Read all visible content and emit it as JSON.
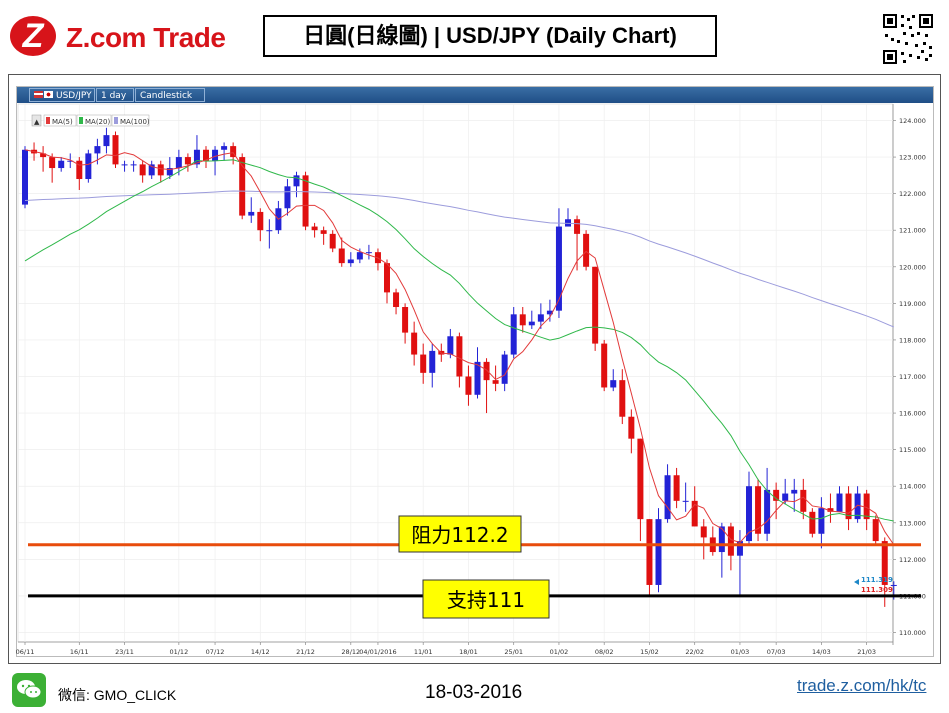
{
  "header": {
    "logo_text": "Z.com Trade",
    "title": "日圓(日線圖) | USD/JPY  (Daily Chart)"
  },
  "toolbar": {
    "symbol": "USD/JPY",
    "interval": "1 day",
    "style": "Candlestick"
  },
  "legend": {
    "ma5": "MA(5)",
    "ma20": "MA(20)",
    "ma100": "MA(100)"
  },
  "annotations": {
    "resistance": "阻力112.2",
    "support": "支持111",
    "last_bid": "111.319",
    "last_ask": "111.309"
  },
  "footer": {
    "wechat_label": "微信: GMO_CLICK",
    "date": "18-03-2016",
    "url": "trade.z.com/hk/tc"
  },
  "colors": {
    "up": "#2323d6",
    "down": "#e01010",
    "ma5": "#e23a3a",
    "ma20": "#2fb84a",
    "ma100": "#9c9cdc",
    "resistance": "#e84c0c",
    "support": "#000000",
    "label_bg": "#ffff00"
  },
  "chart_data": {
    "type": "candlestick",
    "ylim": [
      109.8,
      124.2
    ],
    "y_ticks": [
      "124.000",
      "123.000",
      "122.000",
      "121.000",
      "120.000",
      "119.000",
      "118.000",
      "117.000",
      "116.000",
      "115.000",
      "114.000",
      "113.000",
      "112.000",
      "111.000",
      "110.000"
    ],
    "x_ticks": [
      {
        "label": "06/11",
        "i": 0
      },
      {
        "label": "16/11",
        "i": 6
      },
      {
        "label": "23/11",
        "i": 11
      },
      {
        "label": "01/12",
        "i": 17
      },
      {
        "label": "07/12",
        "i": 21
      },
      {
        "label": "14/12",
        "i": 26
      },
      {
        "label": "21/12",
        "i": 31
      },
      {
        "label": "28/12",
        "i": 36
      },
      {
        "label": "04/01/2016",
        "i": 39
      },
      {
        "label": "11/01",
        "i": 44
      },
      {
        "label": "18/01",
        "i": 49
      },
      {
        "label": "25/01",
        "i": 54
      },
      {
        "label": "01/02",
        "i": 59
      },
      {
        "label": "08/02",
        "i": 64
      },
      {
        "label": "15/02",
        "i": 69
      },
      {
        "label": "22/02",
        "i": 74
      },
      {
        "label": "01/03",
        "i": 79
      },
      {
        "label": "07/03",
        "i": 83
      },
      {
        "label": "14/03",
        "i": 88
      },
      {
        "label": "21/03",
        "i": 93
      }
    ],
    "candles": [
      [
        121.7,
        123.2,
        123.3,
        121.6
      ],
      [
        123.2,
        123.1,
        123.4,
        122.9
      ],
      [
        123.1,
        123.0,
        123.3,
        122.6
      ],
      [
        123.0,
        122.7,
        123.1,
        122.3
      ],
      [
        122.7,
        122.9,
        123.0,
        122.6
      ],
      [
        122.9,
        122.9,
        123.1,
        122.7
      ],
      [
        122.9,
        122.4,
        123.0,
        122.1
      ],
      [
        122.4,
        123.1,
        123.2,
        122.3
      ],
      [
        123.1,
        123.3,
        123.5,
        122.8
      ],
      [
        123.3,
        123.6,
        123.8,
        123.1
      ],
      [
        123.6,
        122.8,
        123.7,
        122.7
      ],
      [
        122.8,
        122.8,
        122.9,
        122.6
      ],
      [
        122.8,
        122.8,
        122.9,
        122.6
      ],
      [
        122.8,
        122.5,
        122.9,
        122.3
      ],
      [
        122.5,
        122.8,
        122.9,
        122.4
      ],
      [
        122.8,
        122.5,
        122.9,
        122.3
      ],
      [
        122.5,
        122.7,
        123.0,
        122.4
      ],
      [
        122.7,
        123.0,
        123.2,
        122.5
      ],
      [
        123.0,
        122.8,
        123.1,
        122.6
      ],
      [
        122.8,
        123.2,
        123.6,
        122.7
      ],
      [
        123.2,
        122.9,
        123.3,
        122.7
      ],
      [
        122.9,
        123.2,
        123.3,
        122.5
      ],
      [
        123.2,
        123.3,
        123.4,
        122.9
      ],
      [
        123.3,
        123.0,
        123.4,
        122.8
      ],
      [
        123.0,
        121.4,
        123.1,
        121.3
      ],
      [
        121.4,
        121.5,
        121.9,
        121.2
      ],
      [
        121.5,
        121.0,
        121.6,
        120.7
      ],
      [
        121.0,
        121.0,
        121.3,
        120.5
      ],
      [
        121.0,
        121.6,
        121.8,
        120.9
      ],
      [
        121.6,
        122.2,
        122.4,
        121.4
      ],
      [
        122.2,
        122.5,
        122.6,
        121.9
      ],
      [
        122.5,
        121.1,
        122.6,
        121.0
      ],
      [
        121.1,
        121.0,
        121.2,
        120.8
      ],
      [
        121.0,
        120.9,
        121.1,
        120.6
      ],
      [
        120.9,
        120.5,
        121.0,
        120.4
      ],
      [
        120.5,
        120.1,
        120.8,
        120.0
      ],
      [
        120.1,
        120.2,
        120.4,
        120.0
      ],
      [
        120.2,
        120.4,
        120.5,
        120.1
      ],
      [
        120.4,
        120.4,
        120.6,
        120.2
      ],
      [
        120.4,
        120.1,
        120.5,
        119.9
      ],
      [
        120.1,
        119.3,
        120.2,
        119.0
      ],
      [
        119.3,
        118.9,
        119.4,
        118.7
      ],
      [
        118.9,
        118.2,
        119.0,
        117.9
      ],
      [
        118.2,
        117.6,
        118.5,
        117.3
      ],
      [
        117.6,
        117.1,
        117.9,
        116.8
      ],
      [
        117.1,
        117.7,
        117.9,
        116.7
      ],
      [
        117.7,
        117.6,
        117.9,
        117.4
      ],
      [
        117.6,
        118.1,
        118.3,
        117.5
      ],
      [
        118.1,
        117.0,
        118.2,
        116.7
      ],
      [
        117.0,
        116.5,
        117.3,
        116.2
      ],
      [
        116.5,
        117.4,
        117.8,
        116.4
      ],
      [
        117.4,
        116.9,
        117.5,
        116.0
      ],
      [
        116.9,
        116.8,
        117.3,
        116.6
      ],
      [
        116.8,
        117.6,
        117.7,
        116.6
      ],
      [
        117.6,
        118.7,
        118.9,
        117.5
      ],
      [
        118.7,
        118.4,
        118.9,
        118.2
      ],
      [
        118.4,
        118.5,
        118.8,
        118.3
      ],
      [
        118.5,
        118.7,
        119.0,
        118.3
      ],
      [
        118.7,
        118.8,
        119.1,
        118.5
      ],
      [
        118.8,
        121.1,
        121.6,
        118.6
      ],
      [
        121.1,
        121.3,
        121.6,
        121.1
      ],
      [
        121.3,
        120.9,
        121.4,
        119.9
      ],
      [
        120.9,
        120.0,
        121.0,
        119.9
      ],
      [
        120.0,
        117.9,
        120.0,
        117.7
      ],
      [
        117.9,
        116.7,
        118.0,
        116.6
      ],
      [
        116.7,
        116.9,
        117.2,
        116.6
      ],
      [
        116.9,
        115.9,
        117.2,
        115.7
      ],
      [
        115.9,
        115.3,
        116.1,
        114.9
      ],
      [
        115.3,
        113.1,
        115.3,
        112.5
      ],
      [
        113.1,
        111.3,
        113.1,
        111.0
      ],
      [
        111.3,
        113.1,
        113.4,
        111.1
      ],
      [
        113.1,
        114.3,
        114.6,
        113.0
      ],
      [
        114.3,
        113.6,
        114.5,
        113.4
      ],
      [
        113.6,
        113.6,
        114.1,
        113.3
      ],
      [
        113.6,
        112.9,
        114.0,
        112.9
      ],
      [
        112.9,
        112.6,
        113.1,
        112.0
      ],
      [
        112.6,
        112.2,
        112.9,
        112.1
      ],
      [
        112.2,
        112.9,
        113.0,
        111.5
      ],
      [
        112.9,
        112.1,
        113.0,
        111.7
      ],
      [
        112.1,
        112.5,
        112.8,
        111.0
      ],
      [
        112.5,
        114.0,
        114.4,
        112.4
      ],
      [
        114.0,
        112.7,
        114.2,
        112.5
      ],
      [
        112.7,
        113.9,
        114.5,
        112.5
      ],
      [
        113.9,
        113.6,
        114.1,
        113.1
      ],
      [
        113.6,
        113.8,
        114.2,
        113.5
      ],
      [
        113.8,
        113.9,
        114.2,
        113.3
      ],
      [
        113.9,
        113.3,
        114.2,
        113.1
      ],
      [
        113.3,
        112.7,
        113.4,
        112.6
      ],
      [
        112.7,
        113.4,
        113.7,
        112.3
      ],
      [
        113.4,
        113.3,
        113.8,
        113.0
      ],
      [
        113.3,
        113.8,
        114.0,
        113.3
      ],
      [
        113.8,
        113.1,
        114.0,
        112.8
      ],
      [
        113.1,
        113.8,
        114.0,
        113.0
      ],
      [
        113.8,
        113.1,
        113.9,
        112.8
      ],
      [
        113.1,
        112.5,
        113.2,
        112.4
      ],
      [
        112.5,
        111.3,
        112.6,
        110.7
      ],
      [
        111.3,
        111.3,
        111.4,
        110.9
      ]
    ]
  }
}
